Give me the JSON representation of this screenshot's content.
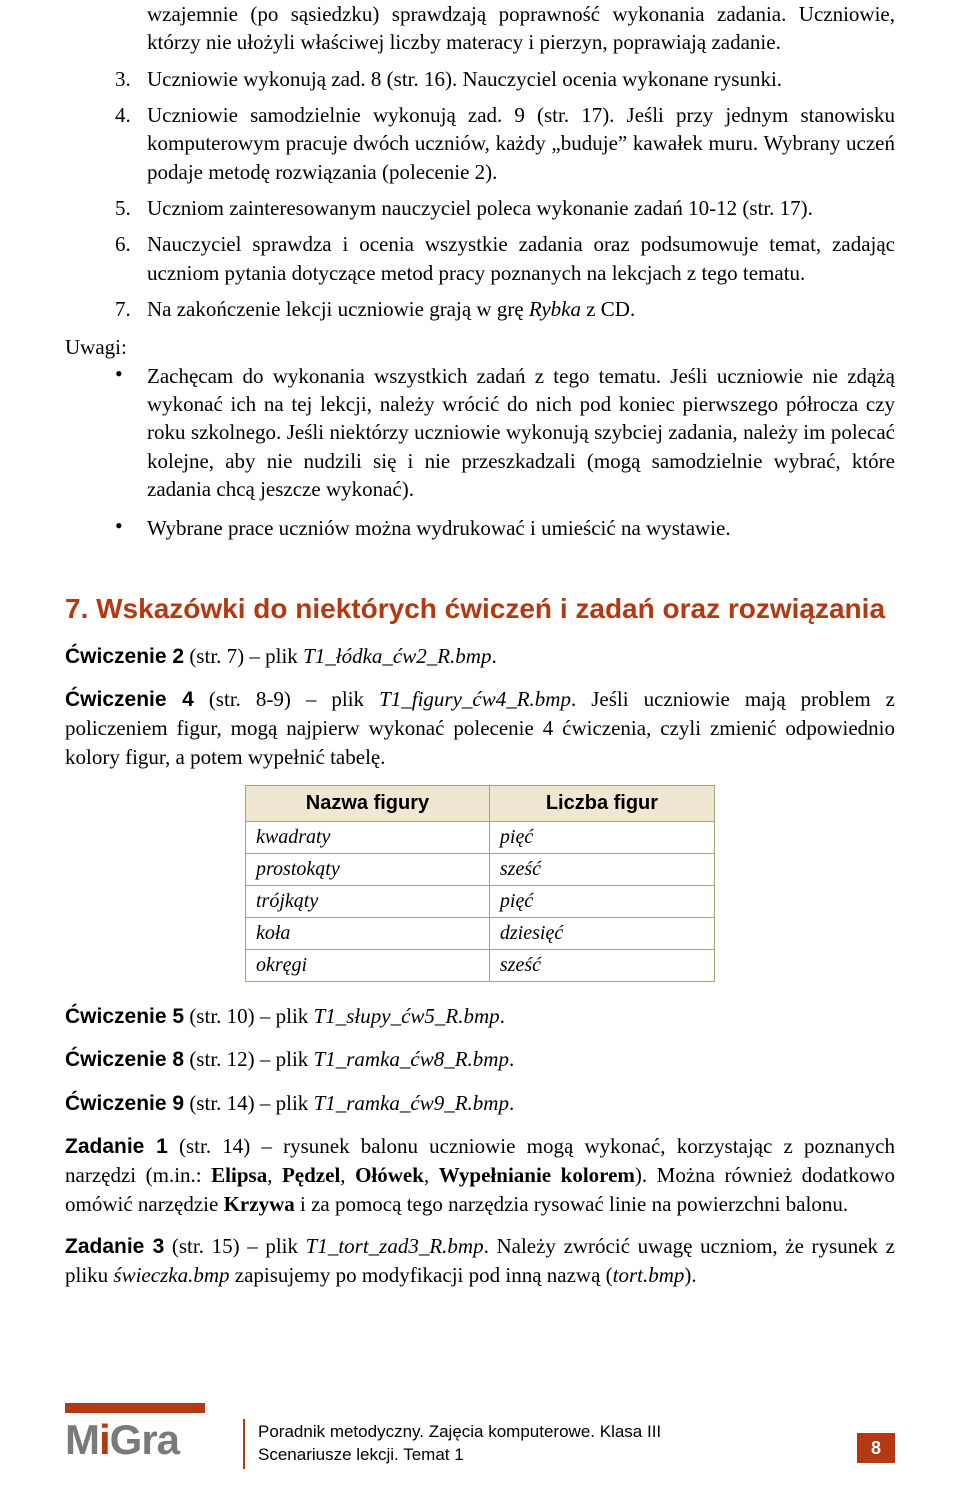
{
  "ordered": [
    {
      "n": "",
      "text": "wzajemnie (po sąsiedzku) sprawdzają poprawność wykonania zadania. Uczniowie, którzy nie ułożyli właściwej liczby materacy i pierzyn, poprawiają zadanie."
    },
    {
      "n": "3.",
      "text": "Uczniowie wykonują zad. 8 (str. 16). Nauczyciel ocenia wykonane rysunki."
    },
    {
      "n": "4.",
      "text": "Uczniowie samodzielnie wykonują zad. 9 (str. 17). Jeśli przy jednym stanowisku komputerowym pracuje dwóch uczniów, każdy „buduje” kawałek muru. Wybrany uczeń podaje metodę rozwiązania (polecenie 2)."
    },
    {
      "n": "5.",
      "text": "Uczniom zainteresowanym nauczyciel poleca wykonanie zadań 10-12 (str. 17)."
    },
    {
      "n": "6.",
      "text": "Nauczyciel sprawdza i ocenia wszystkie zadania oraz podsumowuje temat, zadając uczniom pytania dotyczące metod pracy poznanych na lekcjach z tego tematu."
    },
    {
      "n": "7.",
      "html": "Na zakończenie lekcji uczniowie grają w grę <em>Rybka</em> z CD."
    }
  ],
  "uwagi_label": "Uwagi:",
  "bullets": [
    "Zachęcam do wykonania wszystkich zadań z tego tematu. Jeśli uczniowie nie zdążą wykonać ich na tej lekcji, należy wrócić do nich pod koniec pierwszego półrocza czy roku szkolnego. Jeśli niektórzy uczniowie wykonują szybciej zadania, należy im polecać kolejne, aby nie nudzili się i nie przeszkadzali (mogą samodzielnie wybrać, które zadania chcą jeszcze wykonać).",
    "Wybrane prace uczniów można wydrukować i umieścić na wystawie."
  ],
  "section_title": "7. Wskazówki do niektórych ćwiczeń i zadań oraz rozwiązania",
  "cwiczenia": [
    {
      "html": "<b class='condensed'>Ćwiczenie 2</b> (str. 7) – plik <em>T1_łódka_ćw2_R.bmp</em>."
    },
    {
      "html": "<b class='condensed'>Ćwiczenie 4</b> (str. 8-9) – plik <em>T1_figury_ćw4_R.bmp</em>. Jeśli uczniowie mają problem z policzeniem figur, mogą najpierw wykonać polecenie 4 ćwiczenia, czyli zmienić odpowiednio kolory figur, a potem wypełnić tabelę."
    }
  ],
  "table": {
    "headers": [
      "Nazwa figury",
      "Liczba figur"
    ],
    "rows": [
      [
        "kwadraty",
        "pięć"
      ],
      [
        "prostokąty",
        "sześć"
      ],
      [
        "trójkąty",
        "pięć"
      ],
      [
        "koła",
        "dziesięć"
      ],
      [
        "okręgi",
        "sześć"
      ]
    ],
    "header_bg": "#efe7d1",
    "border_color": "#aba07a"
  },
  "cwiczenia2": [
    {
      "html": "<b class='condensed'>Ćwiczenie 5</b> (str. 10) – plik <em>T1_słupy_ćw5_R.bmp</em>."
    },
    {
      "html": "<b class='condensed'>Ćwiczenie 8</b> (str. 12) – plik <em>T1_ramka_ćw8_R.bmp</em>."
    },
    {
      "html": "<b class='condensed'>Ćwiczenie 9</b> (str. 14) – plik <em>T1_ramka_ćw9_R.bmp</em>."
    },
    {
      "html": "<b class='condensed'>Zadanie 1</b> (str. 14) – rysunek balonu uczniowie mogą wykonać, korzystając z poznanych narzędzi (m.in.: <b>Elipsa</b>, <b>Pędzel</b>, <b>Ołówek</b>, <b>Wypełnianie kolorem</b>). Można również dodatkowo omówić narzędzie <b>Krzywa</b> i za pomocą tego narzędzia rysować linie na powierzchni balonu."
    },
    {
      "html": "<b class='condensed'>Zadanie 3</b> (str. 15) – plik <em>T1_tort_zad3_R.bmp</em>. Należy zwrócić uwagę uczniom, że rysunek z pliku <em>świeczka.bmp</em> zapisujemy po modyfikacji pod inną nazwą (<em>tort.bmp</em>)."
    }
  ],
  "footer": {
    "line1": "Poradnik metodyczny. Zajęcia komputerowe. Klasa III",
    "line2": "Scenariusze lekcji. Temat 1",
    "page": "8",
    "accent": "#b33912"
  }
}
